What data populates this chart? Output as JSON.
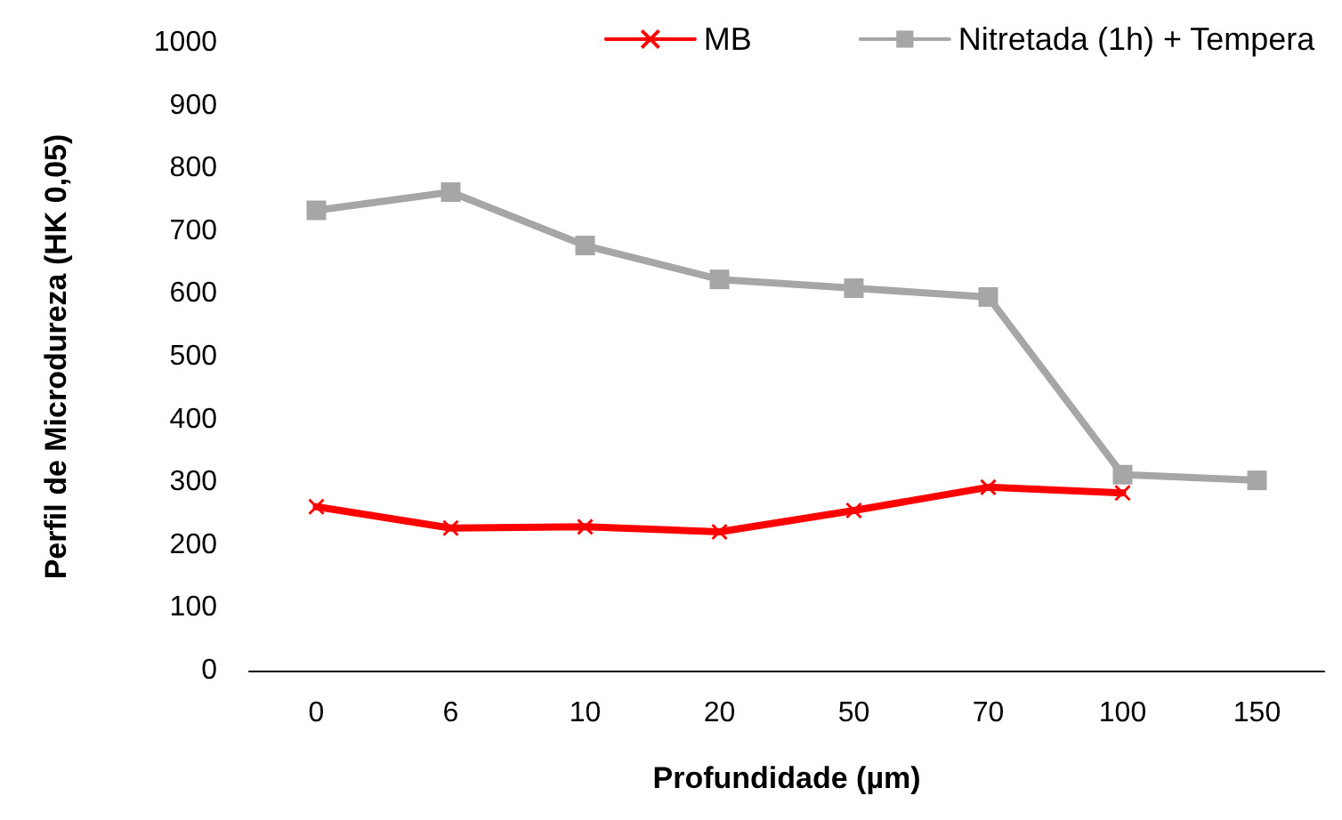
{
  "chart_data": {
    "type": "line",
    "xlabel": "Profundidade (µm)",
    "ylabel": "Perfil de Microdureza (HK 0,05)",
    "categories": [
      "0",
      "6",
      "10",
      "20",
      "50",
      "70",
      "100",
      "150"
    ],
    "series": [
      {
        "name": "MB",
        "color": "#ff0000",
        "marker": "cross",
        "values": [
          261,
          227,
          229,
          221,
          255,
          292,
          283,
          null
        ]
      },
      {
        "name": "Nitretada (1h) + Tempera",
        "color": "#a6a6a6",
        "marker": "square",
        "values": [
          733,
          762,
          677,
          623,
          609,
          595,
          312,
          303
        ]
      }
    ],
    "ylim": [
      0,
      1000
    ],
    "yticks": [
      0,
      100,
      200,
      300,
      400,
      500,
      600,
      700,
      800,
      900,
      1000
    ],
    "grid": false,
    "legend": "top right",
    "line_style": "solid"
  }
}
